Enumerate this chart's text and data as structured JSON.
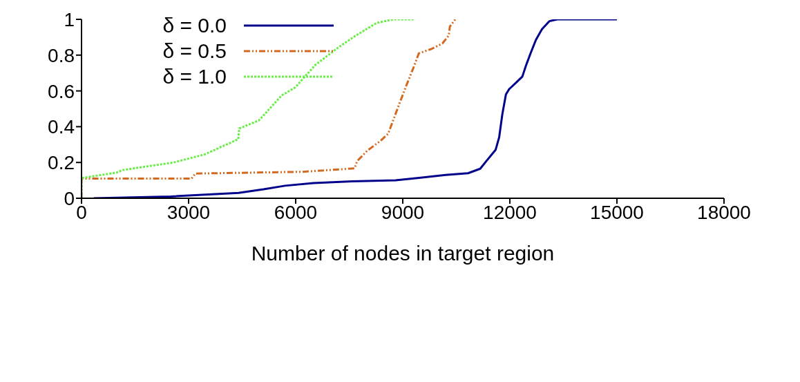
{
  "chart_data": {
    "type": "line",
    "xlabel": "Number of nodes in target region",
    "xlim": [
      0,
      18000
    ],
    "xticks": [
      0,
      3000,
      6000,
      9000,
      12000,
      15000,
      18000
    ],
    "ylim": [
      0,
      1
    ],
    "yticks": [
      0,
      0.2,
      0.4,
      0.6,
      0.8,
      1
    ],
    "grid": false,
    "legend": "top left",
    "marker": "none",
    "series": [
      {
        "name": "δ = 0.0",
        "color": "#00008b",
        "line_style": "solid",
        "x": [
          340,
          2500,
          4400,
          5100,
          5700,
          6500,
          7600,
          8800,
          9500,
          10200,
          10830,
          11170,
          11350,
          11600,
          11700,
          11790,
          11890,
          11980,
          12170,
          12350,
          12450,
          12580,
          12730,
          12900,
          13110,
          13330,
          15000
        ],
        "values": [
          0,
          0.01,
          0.03,
          0.05,
          0.07,
          0.085,
          0.095,
          0.1,
          0.115,
          0.13,
          0.14,
          0.165,
          0.21,
          0.27,
          0.34,
          0.47,
          0.58,
          0.61,
          0.645,
          0.68,
          0.74,
          0.81,
          0.885,
          0.945,
          0.99,
          1,
          1
        ]
      },
      {
        "name": "δ = 0.5",
        "color": "#d2691e",
        "line_style": "dashed",
        "x": [
          0,
          0,
          3080,
          3190,
          6200,
          7650,
          7720,
          8000,
          8370,
          8590,
          8870,
          9100,
          9310,
          9450,
          9810,
          10110,
          10290,
          10320,
          10470
        ],
        "values": [
          0,
          0.11,
          0.11,
          0.138,
          0.148,
          0.167,
          0.207,
          0.265,
          0.32,
          0.36,
          0.51,
          0.63,
          0.735,
          0.81,
          0.835,
          0.865,
          0.91,
          0.96,
          1
        ]
      },
      {
        "name": "δ = 1.0",
        "color": "#66ee44",
        "line_style": "dotted",
        "x": [
          0,
          0,
          980,
          1130,
          2580,
          3450,
          4390,
          4420,
          4970,
          5610,
          5990,
          6550,
          7210,
          7650,
          8270,
          8740,
          9310
        ],
        "values": [
          0,
          0.113,
          0.143,
          0.157,
          0.2,
          0.245,
          0.33,
          0.39,
          0.435,
          0.575,
          0.62,
          0.745,
          0.845,
          0.905,
          0.98,
          1,
          1
        ]
      }
    ]
  }
}
